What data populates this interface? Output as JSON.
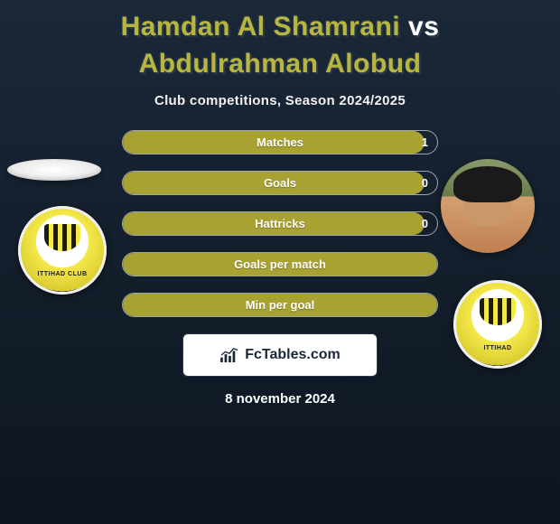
{
  "title": {
    "player1": "Hamdan Al Shamrani",
    "vs": "vs",
    "player2": "Abdulrahman Alobud"
  },
  "subtitle": "Club competitions, Season 2024/2025",
  "bars": [
    {
      "label": "Matches",
      "v1": "",
      "v2": "1",
      "fill_pct": 96,
      "fill_color": "#a8a232"
    },
    {
      "label": "Goals",
      "v1": "",
      "v2": "0",
      "fill_pct": 96,
      "fill_color": "#a8a232"
    },
    {
      "label": "Hattricks",
      "v1": "",
      "v2": "0",
      "fill_pct": 96,
      "fill_color": "#a8a232"
    },
    {
      "label": "Goals per match",
      "v1": "",
      "v2": "",
      "fill_pct": 100,
      "fill_color": "#a8a232"
    },
    {
      "label": "Min per goal",
      "v1": "",
      "v2": "",
      "fill_pct": 100,
      "fill_color": "#a8a232"
    }
  ],
  "bar_border_color": "rgba(255,255,255,0.6)",
  "brand": {
    "name": "FcTables.com"
  },
  "date": "8 november 2024",
  "crest_label": "ITTIHAD\nCLUB",
  "crest_label_small": "ITTIHAD"
}
